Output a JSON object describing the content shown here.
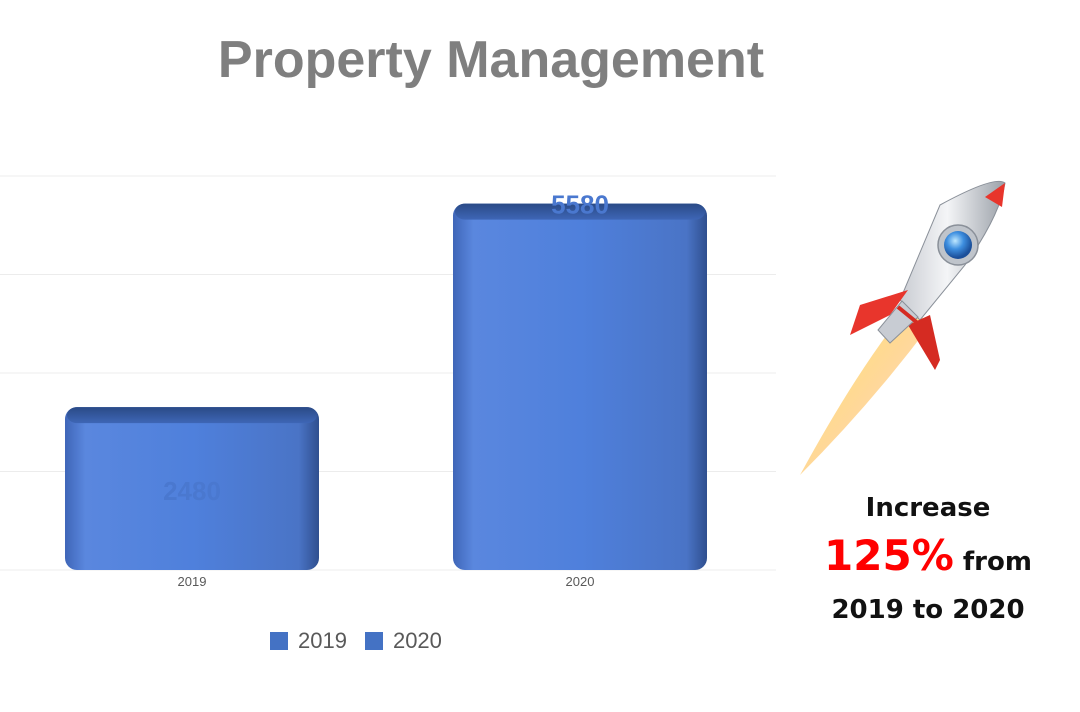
{
  "title": "Property Management",
  "chart_data": {
    "type": "bar",
    "categories": [
      "2019",
      "2020"
    ],
    "series": [
      {
        "name": "2019",
        "values": [
          2480,
          null
        ],
        "color": "#4472c4"
      },
      {
        "name": "2020",
        "values": [
          null,
          5580
        ],
        "color": "#4472c4"
      }
    ],
    "data_labels": [
      "2480",
      "5580"
    ],
    "ylim": [
      0,
      6000
    ],
    "grid": true,
    "legend": "bottom"
  },
  "callout": {
    "line1": "Increase",
    "percent": "125%",
    "line2_suffix": " from",
    "line3": "2019 to 2020",
    "percent_color": "#ff0000"
  },
  "icons": {
    "rocket": "rocket-icon"
  }
}
